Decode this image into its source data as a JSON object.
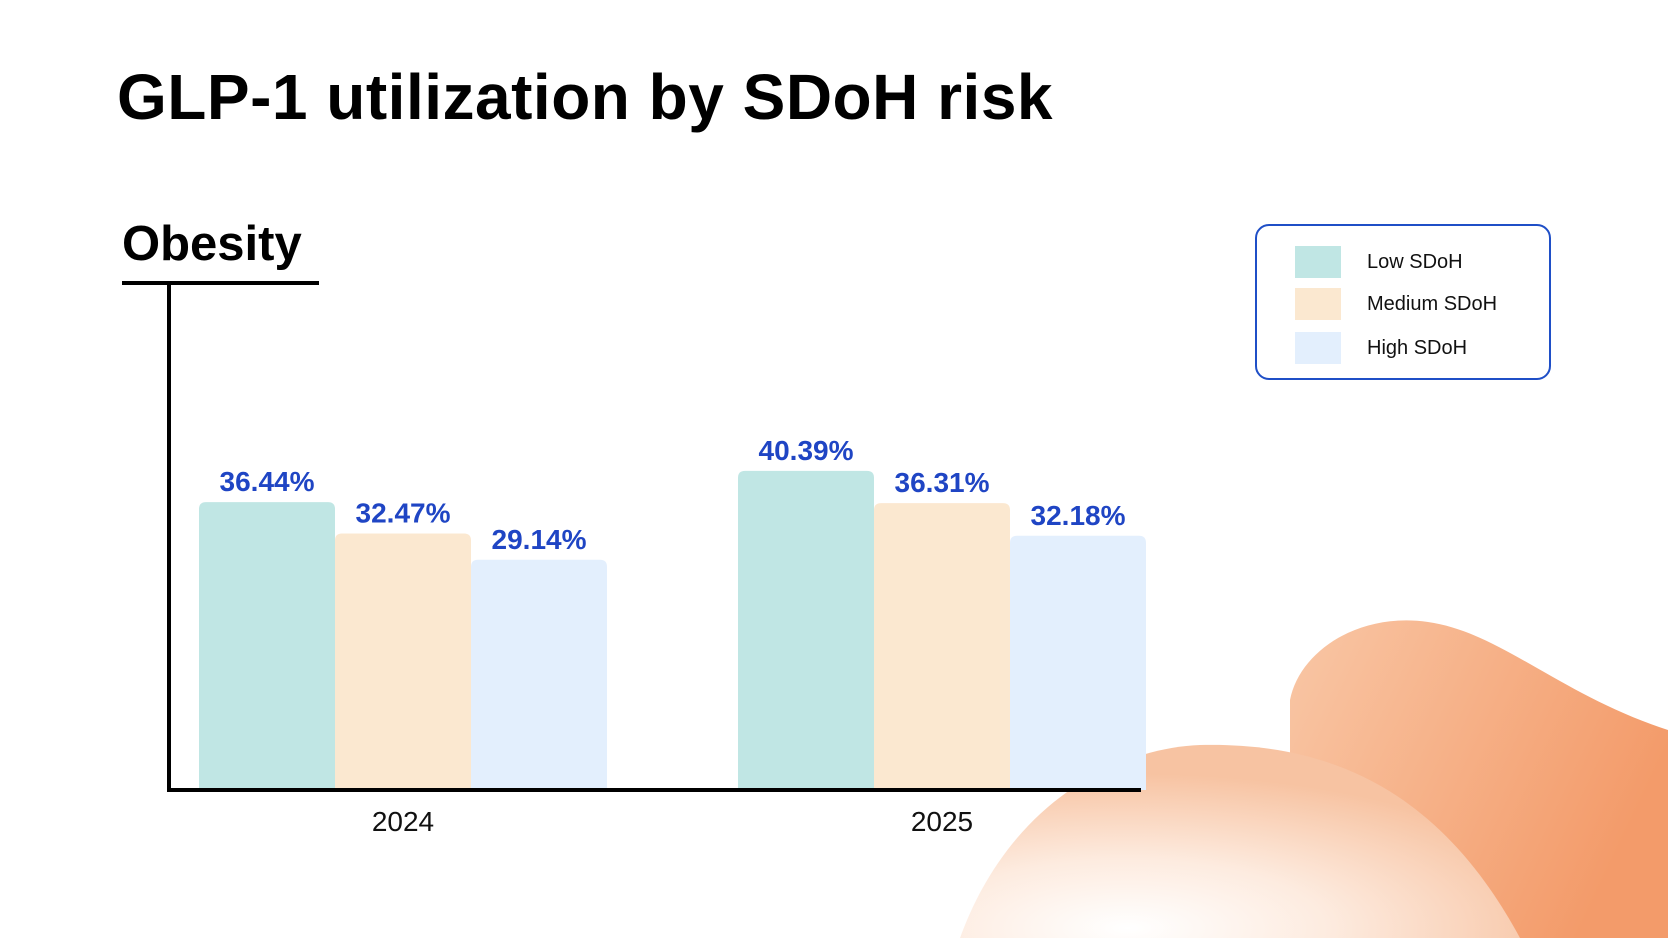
{
  "header": {
    "title": "GLP-1 utilization by SDoH risk"
  },
  "section": {
    "heading": "Obesity"
  },
  "colors": {
    "low": "#c0e6e4",
    "medium": "#fbe8d0",
    "high": "#e3effd",
    "label": "#1f45c4",
    "axis": "#000000",
    "legend_border": "#1f4fc7",
    "blob": "#f4a072"
  },
  "chart_data": {
    "type": "bar",
    "title": "Obesity",
    "categories": [
      "2024",
      "2025"
    ],
    "series": [
      {
        "name": "Low SDoH",
        "key": "low",
        "values": [
          36.44,
          40.39
        ],
        "labels": [
          "36.44%",
          "40.39%"
        ]
      },
      {
        "name": "Medium SDoH",
        "key": "medium",
        "values": [
          32.47,
          36.31
        ],
        "labels": [
          "32.47%",
          "36.31%"
        ]
      },
      {
        "name": "High SDoH",
        "key": "high",
        "values": [
          29.14,
          32.18
        ],
        "labels": [
          "29.14%",
          "32.18%"
        ]
      }
    ],
    "xlabel": "",
    "ylabel": "",
    "grid": false,
    "legend_position": "top-right"
  }
}
